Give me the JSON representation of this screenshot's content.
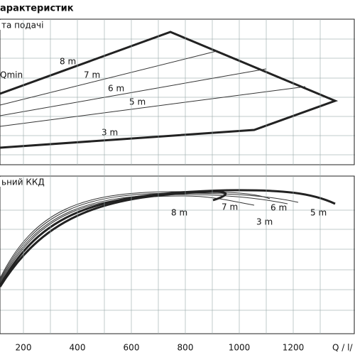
{
  "header": {
    "title": "арактеристик"
  },
  "panels": [
    {
      "title": "та подачі",
      "labels": [
        "Qmin",
        "8 m",
        "7 m",
        "6 m",
        "5 m",
        "3 m"
      ]
    },
    {
      "title": "ьний ККД",
      "labels": [
        "8 m",
        "7 m",
        "6 m",
        "5 m",
        "3 m"
      ]
    }
  ],
  "x_axis": {
    "ticks": [
      200,
      400,
      600,
      800,
      1000,
      1200
    ],
    "label": "Q / l/"
  }
}
